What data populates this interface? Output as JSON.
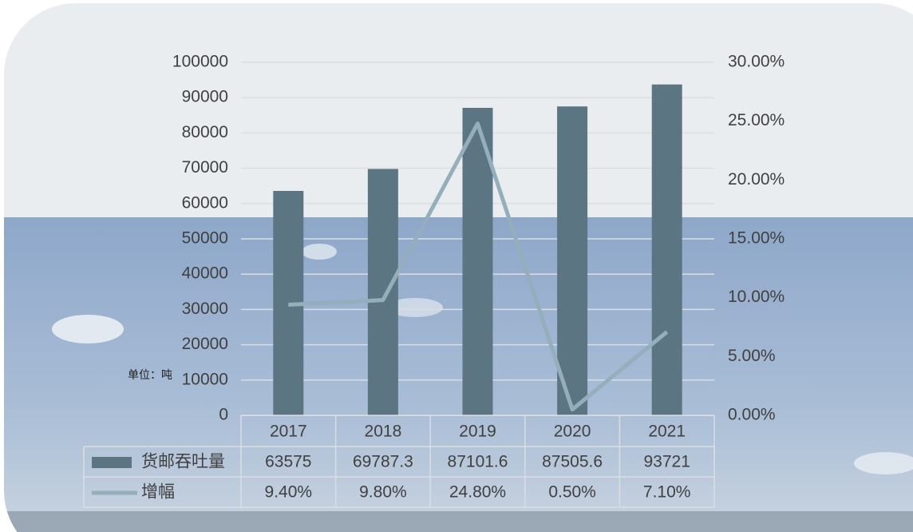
{
  "chart_data": {
    "type": "bar-line",
    "annotation": "单位：吨",
    "categories": [
      "2017",
      "2018",
      "2019",
      "2020",
      "2021"
    ],
    "series": [
      {
        "name": "货邮吞吐量",
        "type": "bar",
        "color": "#5b7682",
        "values": [
          63575,
          69787.3,
          87101.6,
          87505.6,
          93721
        ]
      },
      {
        "name": "增幅",
        "type": "line",
        "axis": "y2",
        "color": "#94aebb",
        "values": [
          9.4,
          9.8,
          24.8,
          0.5,
          7.1
        ],
        "value_labels": [
          "9.40%",
          "9.80%",
          "24.80%",
          "0.50%",
          "7.10%"
        ]
      }
    ],
    "ylim": [
      0,
      100000
    ],
    "yticks": [
      0,
      10000,
      20000,
      30000,
      40000,
      50000,
      60000,
      70000,
      80000,
      90000,
      100000
    ],
    "y2lim": [
      0,
      30
    ],
    "y2ticks": [
      {
        "value": 0,
        "label": "0.00%"
      },
      {
        "value": 5,
        "label": "5.00%"
      },
      {
        "value": 10,
        "label": "10.00%"
      },
      {
        "value": 15,
        "label": "15.00%"
      },
      {
        "value": 20,
        "label": "20.00%"
      },
      {
        "value": 25,
        "label": "25.00%"
      },
      {
        "value": 30,
        "label": "30.00%"
      }
    ],
    "grid": true,
    "data_table": true
  }
}
